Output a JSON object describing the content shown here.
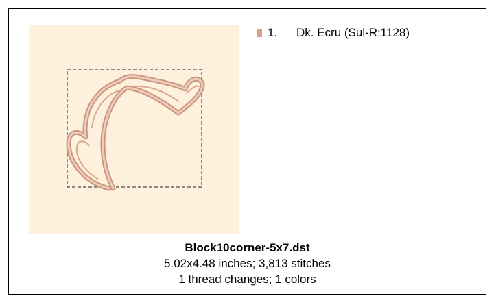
{
  "threads": [
    {
      "number": "1.",
      "name": "Dk. Ecru (Sul-R:1128)",
      "color": "#d4a08a"
    }
  ],
  "design": {
    "filename": "Block10corner-5x7.dst",
    "size_line": "5.02x4.48 inches; 3,813 stitches",
    "changes_line": "1 thread changes; 1 colors"
  }
}
